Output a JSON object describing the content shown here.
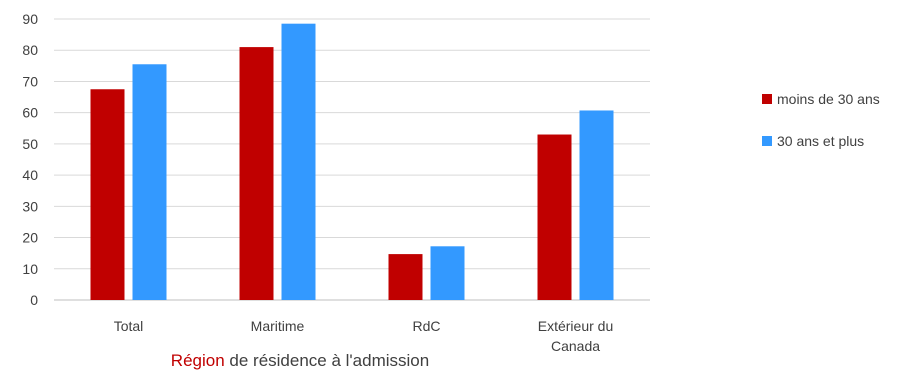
{
  "chart_data": {
    "type": "bar",
    "categories": [
      [
        "Total"
      ],
      [
        "Maritime"
      ],
      [
        "RdC"
      ],
      [
        "Extérieur du",
        "Canada"
      ]
    ],
    "series": [
      {
        "name": "moins de 30 ans",
        "color": "#c00000",
        "values": [
          67.5,
          81,
          14.7,
          53
        ]
      },
      {
        "name": "30 ans et plus",
        "color": "#3399ff",
        "values": [
          75.5,
          88.5,
          17.2,
          60.7
        ]
      }
    ],
    "xlabel_parts": [
      {
        "text": "Région",
        "color": "#c00000"
      },
      {
        "text": " de résidence à l'admission",
        "color": "#404040"
      }
    ],
    "ylim": [
      0,
      90
    ],
    "yticks": [
      "0",
      "10",
      "20",
      "30",
      "40",
      "50",
      "60",
      "70",
      "80",
      "90"
    ],
    "grid": true,
    "legend_position": "right"
  }
}
